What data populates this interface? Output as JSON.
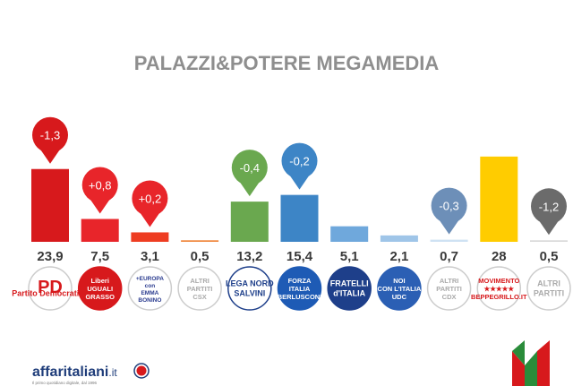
{
  "page": {
    "title": "PALAZZI&POTERE MEGAMEDIA",
    "footer": {
      "brand_name": "affaritaliani",
      "brand_tld": ".it",
      "tagline": "Il primo quotidiano digitale, dal 1996"
    }
  },
  "chart_data": {
    "type": "bar",
    "title": "PALAZZI&POTERE MEGAMEDIA",
    "ylim": [
      0,
      30
    ],
    "grid": false,
    "categories": [
      "PD",
      "LIBERI E UGUALI",
      "+EUROPA",
      "ALTRI PARTITI CSX",
      "LEGA NORD",
      "FORZA ITALIA",
      "FRATELLI D'ITALIA",
      "NOI CON L'ITALIA",
      "ALTRI PARTITI CDX",
      "MOVIMENTO 5 STELLE",
      "ALTRI PARTITI"
    ],
    "values": [
      23.9,
      7.5,
      3.1,
      0.5,
      13.2,
      15.4,
      5.1,
      2.1,
      0.7,
      28,
      0.5
    ],
    "value_labels": [
      "23,9",
      "7,5",
      "3,1",
      "0,5",
      "13,2",
      "15,4",
      "5,1",
      "2,1",
      "0,7",
      "28",
      "0,5"
    ],
    "colors": [
      "#d7191c",
      "#e8252a",
      "#ee3d22",
      "#f0863c",
      "#6aa84f",
      "#3d85c6",
      "#6fa8dc",
      "#9fc5e8",
      "#cfe2f3",
      "#ffcc00",
      "#d9d9d9"
    ],
    "changes": [
      {
        "index": 0,
        "label": "-1,3",
        "color": "#d7191c"
      },
      {
        "index": 1,
        "label": "+0,8",
        "color": "#e8252a"
      },
      {
        "index": 2,
        "label": "+0,2",
        "color": "#e8252a"
      },
      {
        "index": 4,
        "label": "-0,4",
        "color": "#6aa84f"
      },
      {
        "index": 5,
        "label": "-0,2",
        "color": "#3d85c6"
      },
      {
        "index": 8,
        "label": "-0,3",
        "color": "#6d8fb8"
      },
      {
        "index": 10,
        "label": "-1,2",
        "color": "#6b6b6b"
      }
    ],
    "logos": [
      {
        "name": "pd-logo",
        "lines": [
          "PD",
          "Partito Democratico"
        ],
        "bg": "#ffffff",
        "fg": "#d7191c",
        "ring": "#cccccc"
      },
      {
        "name": "liberi-uguali-logo",
        "lines": [
          "Liberi",
          "UGUALI",
          "GRASSO"
        ],
        "bg": "#d7191c",
        "fg": "#ffffff",
        "ring": "#d7191c"
      },
      {
        "name": "piu-europa-logo",
        "lines": [
          "+EUROPA",
          "con",
          "EMMA",
          "BONINO"
        ],
        "bg": "#ffffff",
        "fg": "#2a3b8f",
        "ring": "#cccccc"
      },
      {
        "name": "altri-partiti-csx-logo",
        "lines": [
          "ALTRI",
          "PARTITI",
          "CSX"
        ],
        "bg": "#ffffff",
        "fg": "#aaaaaa",
        "ring": "#cccccc"
      },
      {
        "name": "lega-nord-logo",
        "lines": [
          "LEGA NORD",
          "SALVINI"
        ],
        "bg": "#ffffff",
        "fg": "#1e3f8a",
        "ring": "#1e3f8a"
      },
      {
        "name": "forza-italia-logo",
        "lines": [
          "FORZA",
          "ITALIA",
          "BERLUSCONI"
        ],
        "bg": "#1e5bb5",
        "fg": "#ffffff",
        "ring": "#1e5bb5"
      },
      {
        "name": "fratelli-italia-logo",
        "lines": [
          "FRATELLI",
          "d'ITALIA"
        ],
        "bg": "#1e3f8a",
        "fg": "#ffffff",
        "ring": "#1e3f8a"
      },
      {
        "name": "noi-con-italia-logo",
        "lines": [
          "NOI",
          "CON L'ITALIA",
          "UDC"
        ],
        "bg": "#2b5fb4",
        "fg": "#ffffff",
        "ring": "#2b5fb4"
      },
      {
        "name": "altri-partiti-cdx-logo",
        "lines": [
          "ALTRI",
          "PARTITI",
          "CDX"
        ],
        "bg": "#ffffff",
        "fg": "#aaaaaa",
        "ring": "#cccccc"
      },
      {
        "name": "movimento-5-stelle-logo",
        "lines": [
          "MOVIMENTO",
          "★★★★★",
          "BEPPEGRILLO.IT"
        ],
        "bg": "#ffffff",
        "fg": "#d7191c",
        "ring": "#cccccc"
      },
      {
        "name": "altri-partiti-logo",
        "lines": [
          "ALTRI",
          "PARTITI"
        ],
        "bg": "#ffffff",
        "fg": "#aaaaaa",
        "ring": "#cccccc"
      }
    ]
  }
}
